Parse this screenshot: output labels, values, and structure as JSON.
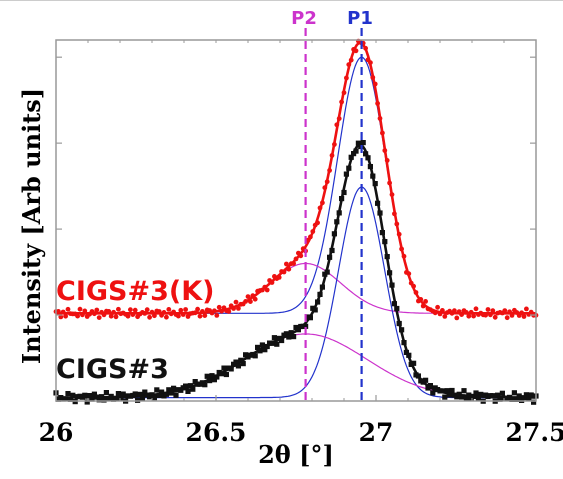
{
  "chart_data": {
    "type": "scatter",
    "xlabel": "2θ [°]",
    "ylabel": "Intensity [Arb units]",
    "xlim": [
      26.0,
      27.5
    ],
    "ylim": [
      0,
      4.2
    ],
    "x_ticks": [
      "26",
      "26.5",
      "27",
      "27.5"
    ],
    "grid": false,
    "peak_lines": [
      {
        "label": "P2",
        "x": 26.78,
        "color": "#cc33cc"
      },
      {
        "label": "P1",
        "x": 26.955,
        "color": "#2233cc"
      }
    ],
    "series": [
      {
        "name": "CIGS#3(K)",
        "label_color": "#ee1111",
        "marker": "circle",
        "marker_color": "#ee1111",
        "baseline": 1.02,
        "components": [
          {
            "center": 26.955,
            "amplitude": 2.98,
            "sigma": 0.075,
            "color": "#2233cc"
          },
          {
            "center": 26.78,
            "amplitude": 0.58,
            "sigma": 0.11,
            "color": "#cc33cc"
          }
        ]
      },
      {
        "name": "CIGS#3",
        "label_color": "#111111",
        "marker": "square",
        "marker_color": "#111111",
        "baseline": 0.04,
        "components": [
          {
            "center": 26.955,
            "amplitude": 2.45,
            "sigma": 0.072,
            "color": "#2233cc"
          },
          {
            "center": 26.78,
            "amplitude": 0.74,
            "sigma": 0.19,
            "color": "#cc33cc"
          }
        ]
      }
    ]
  }
}
